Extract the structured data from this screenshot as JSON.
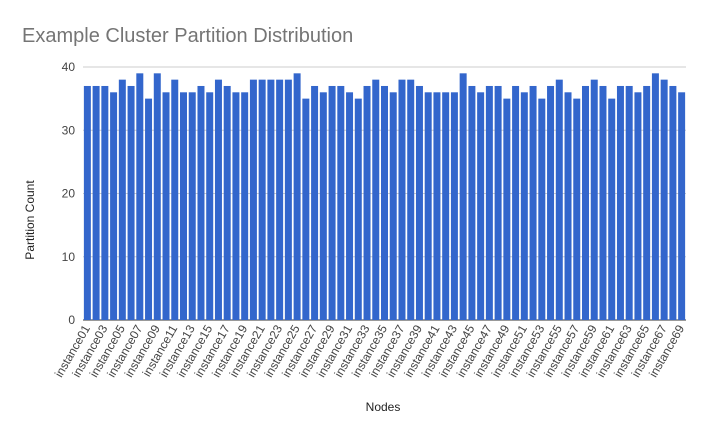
{
  "chart_data": {
    "type": "bar",
    "title": "Example Cluster Partition Distribution",
    "x_label": "Nodes",
    "y_label": "Partition Count",
    "categories": [
      "instance01",
      null,
      "instance03",
      null,
      "instance05",
      null,
      "instance07",
      null,
      "instance09",
      null,
      "instance11",
      null,
      "instance13",
      null,
      "instance15",
      null,
      "instance17",
      null,
      "instance19",
      null,
      "instance21",
      null,
      "instance23",
      null,
      "instance25",
      null,
      "instance27",
      null,
      "instance29",
      null,
      "instance31",
      null,
      "instance33",
      null,
      "instance35",
      null,
      "instance37",
      null,
      "instance39",
      null,
      "instance41",
      null,
      "instance43",
      null,
      "instance45",
      null,
      "instance47",
      null,
      "instance49",
      null,
      "instance51",
      null,
      "instance53",
      null,
      "instance55",
      null,
      "instance57",
      null,
      "instance59",
      null,
      "instance61",
      null,
      "instance63",
      null,
      "instance65",
      null,
      "instance67",
      null,
      "instance69"
    ],
    "values": [
      37,
      37,
      37,
      36,
      38,
      37,
      39,
      35,
      39,
      36,
      38,
      36,
      36,
      37,
      36,
      38,
      37,
      36,
      36,
      38,
      38,
      38,
      38,
      38,
      39,
      35,
      37,
      36,
      37,
      37,
      36,
      35,
      37,
      38,
      37,
      36,
      38,
      38,
      37,
      36,
      36,
      36,
      36,
      39,
      37,
      36,
      37,
      37,
      35,
      37,
      36,
      37,
      35,
      37,
      38,
      36,
      35,
      37,
      38,
      37,
      35,
      37,
      37,
      36,
      37,
      39,
      38,
      37,
      36
    ],
    "color": "#3366cc",
    "ylim": [
      0,
      40
    ],
    "yticks": [
      0,
      10,
      20,
      30,
      40
    ],
    "grid": true
  }
}
